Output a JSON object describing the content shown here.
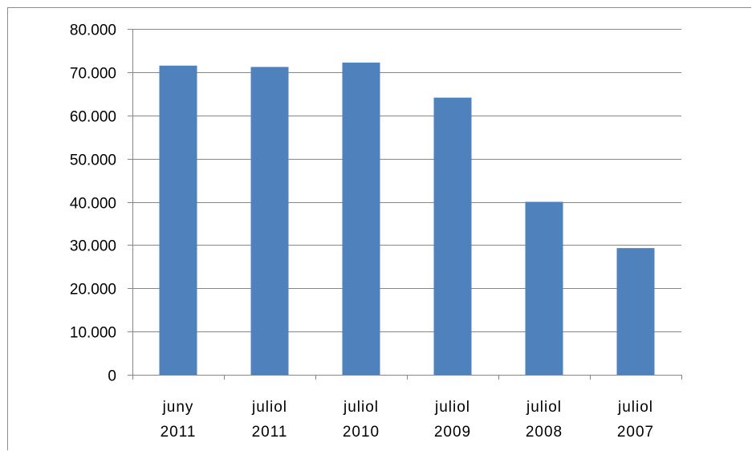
{
  "chart_data": {
    "type": "bar",
    "categories": [
      [
        "juny",
        "2011"
      ],
      [
        "juliol",
        "2011"
      ],
      [
        "juliol",
        "2010"
      ],
      [
        "juliol",
        "2009"
      ],
      [
        "juliol",
        "2008"
      ],
      [
        "juliol",
        "2007"
      ]
    ],
    "values": [
      71500,
      71200,
      72200,
      64100,
      40000,
      29300
    ],
    "ylim": [
      0,
      80000
    ],
    "yticks": [
      0,
      10000,
      20000,
      30000,
      40000,
      50000,
      60000,
      70000,
      80000
    ],
    "ytick_labels": [
      "0",
      "10.000",
      "20.000",
      "30.000",
      "40.000",
      "50.000",
      "60.000",
      "70.000",
      "80.000"
    ],
    "grid": true,
    "legend": "none",
    "bar_color": "#4f81bd",
    "grid_color": "#868686"
  }
}
